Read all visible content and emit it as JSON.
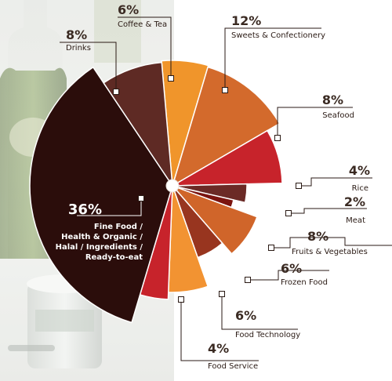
{
  "chart_data": {
    "type": "pie",
    "slices": [
      {
        "label": "Coffee & Tea",
        "value": 6,
        "pct": "6%",
        "color": "#f0952b"
      },
      {
        "label": "Sweets & Confectionery",
        "value": 12,
        "pct": "12%",
        "color": "#d36a2c"
      },
      {
        "label": "Seafood",
        "value": 8,
        "pct": "8%",
        "color": "#c7232b"
      },
      {
        "label": "Rice",
        "value": 4,
        "pct": "4%",
        "color": "#6b2a26"
      },
      {
        "label": "Meat",
        "value": 2,
        "pct": "2%",
        "color": "#7b140f"
      },
      {
        "label": "Fruits & Vegetables",
        "value": 8,
        "pct": "8%",
        "color": "#d0652a"
      },
      {
        "label": "Frozen Food",
        "value": 6,
        "pct": "6%",
        "color": "#98351f"
      },
      {
        "label": "Food Technology",
        "value": 6,
        "pct": "6%",
        "color": "#f29332"
      },
      {
        "label": "Food Service",
        "value": 4,
        "pct": "4%",
        "color": "#c7232b"
      },
      {
        "label": "Fine Food / Health & Organic / Halal / Ingredients / Ready-to-eat",
        "value": 36,
        "pct": "36%",
        "color": "#2b0d0b"
      },
      {
        "label": "Drinks",
        "value": 8,
        "pct": "8%",
        "color": "#5e2a24"
      }
    ],
    "label_lines": {
      "fine_food": [
        "Fine Food /",
        "Health & Organic /",
        "Halal / Ingredients /",
        "Ready-to-eat"
      ]
    }
  }
}
